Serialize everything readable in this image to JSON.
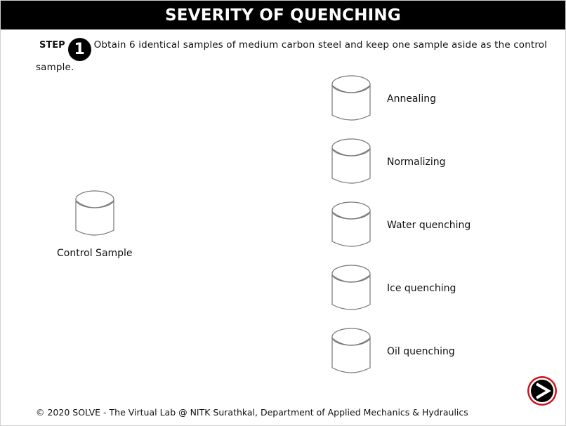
{
  "title": "SEVERITY OF QUENCHING",
  "step": {
    "label": "STEP",
    "number": "1",
    "text": "Obtain 6 identical samples of medium carbon steel and keep one sample aside as the control sample."
  },
  "control_sample": {
    "label": "Control Sample",
    "icon": "cylinder-sample-icon"
  },
  "samples": [
    {
      "label": "Annealing",
      "icon": "cylinder-sample-icon"
    },
    {
      "label": "Normalizing",
      "icon": "cylinder-sample-icon"
    },
    {
      "label": "Water quenching",
      "icon": "cylinder-sample-icon"
    },
    {
      "label": "Ice quenching",
      "icon": "cylinder-sample-icon"
    },
    {
      "label": "Oil quenching",
      "icon": "cylinder-sample-icon"
    }
  ],
  "footer": "© 2020 SOLVE - The Virtual Lab @ NITK Surathkal, Department of Applied Mechanics & Hydraulics",
  "next_button": {
    "icon": "next-arrow-icon",
    "ring_color": "#d0121b",
    "fill_color": "#000000"
  },
  "colors": {
    "title_bar": "#000000",
    "title_text": "#ffffff",
    "sample_stroke": "#777777"
  }
}
